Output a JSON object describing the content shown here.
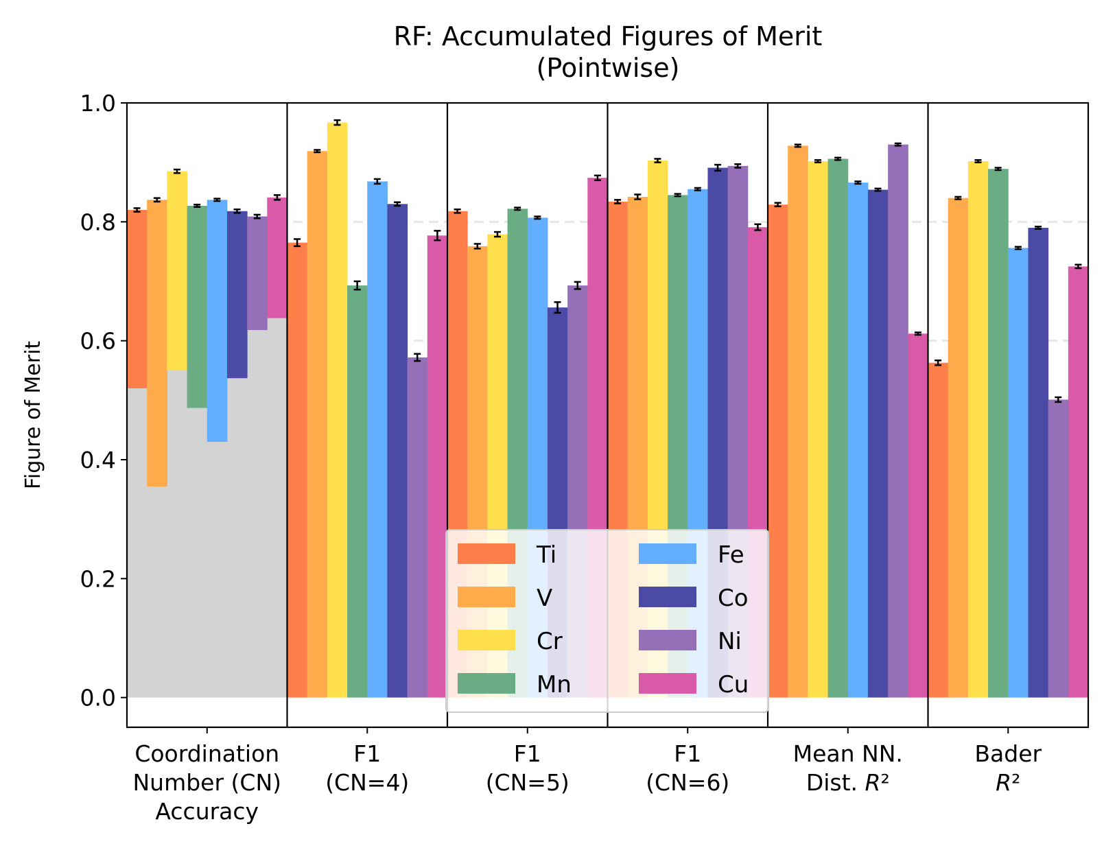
{
  "chart_data": {
    "type": "bar",
    "title": [
      "RF: Accumulated Figures of Merit",
      "(Pointwise)"
    ],
    "xlabel": "",
    "ylabel": "Figure of Merit",
    "ylim": [
      -0.05,
      1.0
    ],
    "yticks": [
      "0.0",
      "0.2",
      "0.4",
      "0.6",
      "0.8",
      "1.0"
    ],
    "grid": "horizontal dashed",
    "legend_position": "lower center",
    "categories": [
      {
        "lines": [
          "Coordination",
          "Number (CN)",
          "Accuracy"
        ]
      },
      {
        "lines": [
          "F1",
          "(CN=4)"
        ]
      },
      {
        "lines": [
          "F1",
          "(CN=5)"
        ]
      },
      {
        "lines": [
          "F1",
          "(CN=6)"
        ]
      },
      {
        "lines": [
          "Mean NN.",
          "Dist. R²"
        ],
        "math_last": "R"
      },
      {
        "lines": [
          "Bader",
          "R²"
        ],
        "math_last": "R"
      }
    ],
    "baseline": {
      "name": "",
      "color": "#d3d3d3",
      "category_index": 0,
      "values": [
        0.52,
        0.355,
        0.55,
        0.487,
        0.43,
        0.537,
        0.618,
        0.638
      ]
    },
    "series": [
      {
        "name": "Ti",
        "color": "#ff7f4a",
        "values": [
          0.82,
          0.765,
          0.818,
          0.834,
          0.829,
          0.563
        ],
        "errors": [
          0.003,
          0.006,
          0.003,
          0.003,
          0.003,
          0.004
        ]
      },
      {
        "name": "V",
        "color": "#ffab4c",
        "values": [
          0.837,
          0.919,
          0.759,
          0.842,
          0.928,
          0.84
        ],
        "errors": [
          0.003,
          0.002,
          0.004,
          0.004,
          0.002,
          0.002
        ]
      },
      {
        "name": "Cr",
        "color": "#ffe04c",
        "values": [
          0.885,
          0.967,
          0.779,
          0.903,
          0.902,
          0.902
        ],
        "errors": [
          0.003,
          0.004,
          0.004,
          0.003,
          0.002,
          0.002
        ]
      },
      {
        "name": "Mn",
        "color": "#6aad85",
        "values": [
          0.827,
          0.693,
          0.822,
          0.845,
          0.906,
          0.889
        ],
        "errors": [
          0.002,
          0.007,
          0.002,
          0.002,
          0.002,
          0.002
        ]
      },
      {
        "name": "Fe",
        "color": "#62aefc",
        "values": [
          0.837,
          0.868,
          0.807,
          0.855,
          0.866,
          0.756
        ],
        "errors": [
          0.002,
          0.004,
          0.002,
          0.002,
          0.002,
          0.002
        ]
      },
      {
        "name": "Co",
        "color": "#4b4ba6",
        "values": [
          0.818,
          0.83,
          0.656,
          0.891,
          0.854,
          0.79
        ],
        "errors": [
          0.003,
          0.003,
          0.009,
          0.005,
          0.002,
          0.002
        ]
      },
      {
        "name": "Ni",
        "color": "#9570b8",
        "values": [
          0.809,
          0.572,
          0.693,
          0.894,
          0.93,
          0.501
        ],
        "errors": [
          0.003,
          0.006,
          0.006,
          0.003,
          0.002,
          0.004
        ]
      },
      {
        "name": "Cu",
        "color": "#d85aa8",
        "values": [
          0.841,
          0.777,
          0.874,
          0.791,
          0.612,
          0.725
        ],
        "errors": [
          0.004,
          0.008,
          0.004,
          0.005,
          0.002,
          0.003
        ]
      }
    ]
  }
}
